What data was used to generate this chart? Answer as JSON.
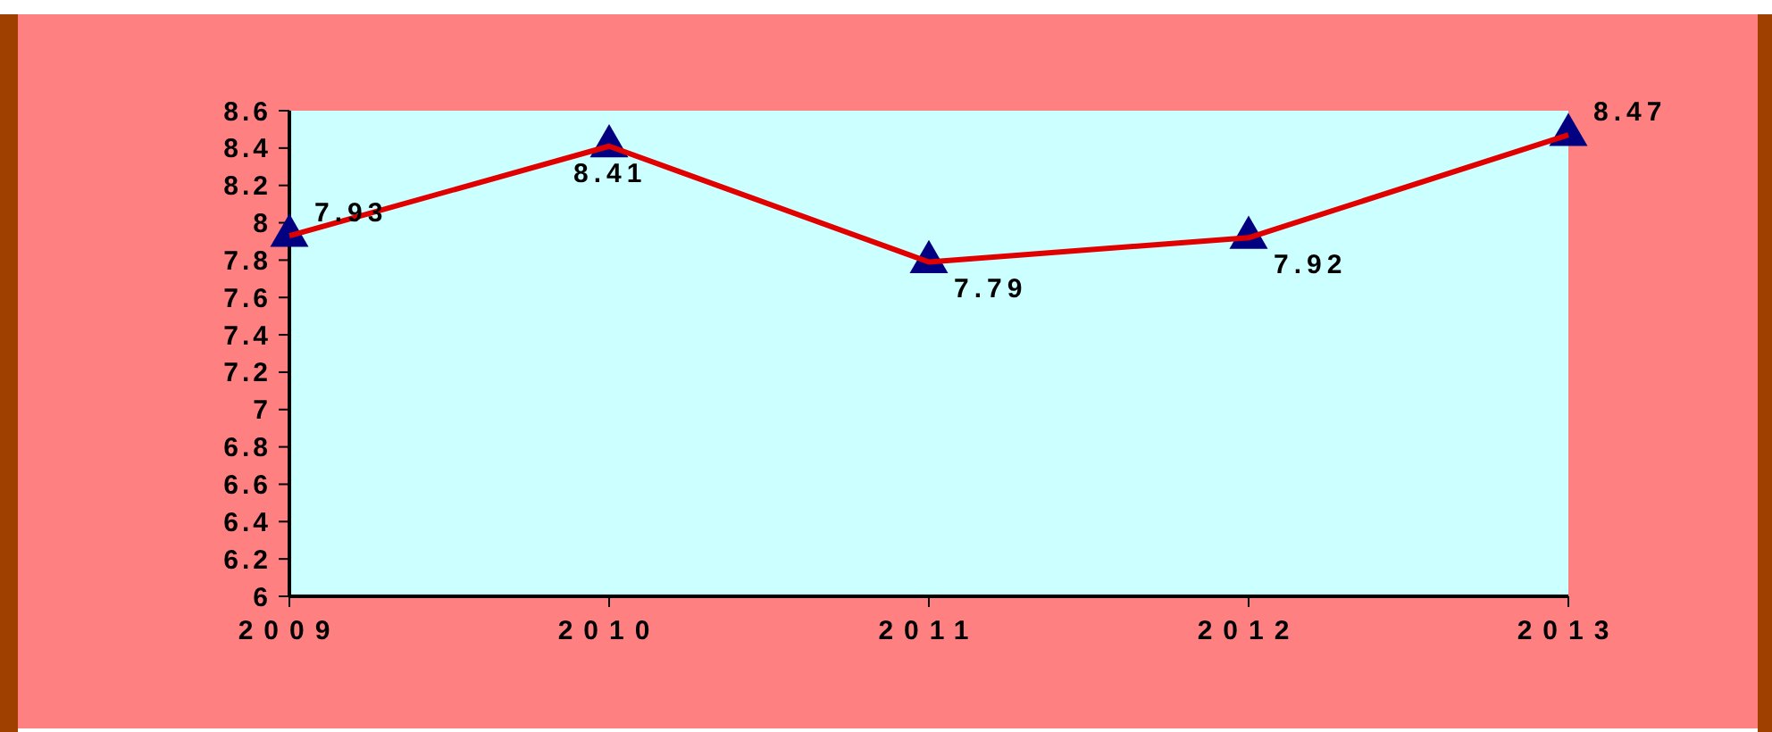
{
  "chart_data": {
    "type": "line",
    "categories": [
      "2009",
      "2010",
      "2011",
      "2012",
      "2013"
    ],
    "series": [
      {
        "color": "#e00000",
        "values": [
          7.93,
          8.41,
          7.79,
          7.92,
          8.47
        ]
      }
    ],
    "ylim": [
      6,
      8.6
    ],
    "yticks": [
      6,
      6.2,
      6.4,
      6.6,
      6.8,
      7,
      7.2,
      7.4,
      7.6,
      7.8,
      8,
      8.2,
      8.4,
      8.6
    ],
    "marker": "triangle",
    "data_labels": true,
    "grid": false
  }
}
